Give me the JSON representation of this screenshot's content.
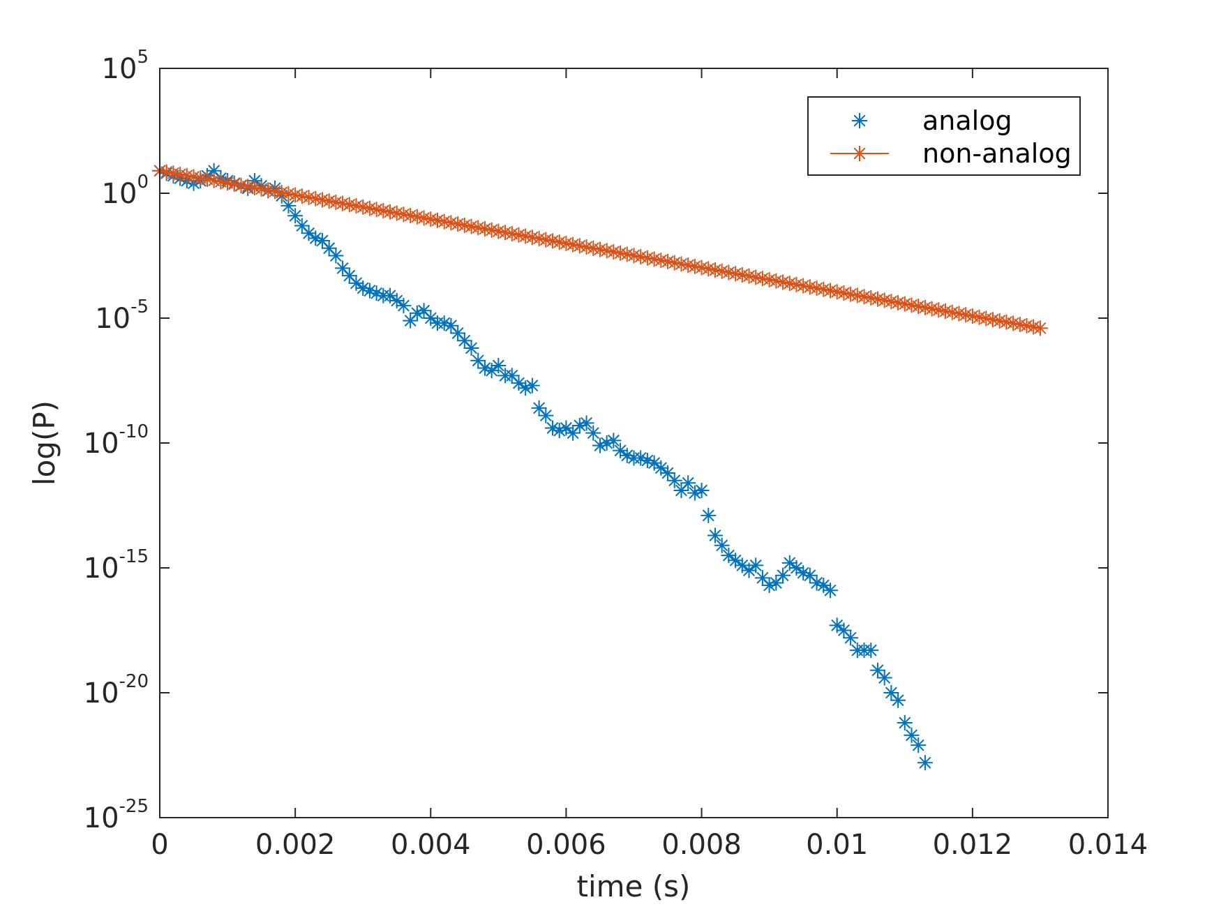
{
  "chart_data": {
    "type": "scatter",
    "xlabel": "time (s)",
    "ylabel": "log(P)",
    "xlim": [
      0,
      0.014
    ],
    "ylim_exponent": [
      -25,
      5
    ],
    "yscale": "log",
    "grid": false,
    "legend_position": "top-right",
    "x_ticks": [
      "0",
      "0.002",
      "0.004",
      "0.006",
      "0.008",
      "0.01",
      "0.012",
      "0.014"
    ],
    "y_ticks": [
      {
        "base": "10",
        "exp": "5"
      },
      {
        "base": "10",
        "exp": "0"
      },
      {
        "base": "10",
        "exp": "-5"
      },
      {
        "base": "10",
        "exp": "-10"
      },
      {
        "base": "10",
        "exp": "-15"
      },
      {
        "base": "10",
        "exp": "-20"
      },
      {
        "base": "10",
        "exp": "-25"
      }
    ],
    "series": [
      {
        "name": "analog",
        "color": "#0072BD",
        "marker": "asterisk",
        "x": [
          0,
          0.0001,
          0.0002,
          0.0003,
          0.0004,
          0.0005,
          0.0006,
          0.0007,
          0.0008,
          0.0009,
          0.001,
          0.0011,
          0.0012,
          0.0013,
          0.0014,
          0.0015,
          0.0016,
          0.0017,
          0.0018,
          0.0019,
          0.002,
          0.0021,
          0.0022,
          0.0023,
          0.0024,
          0.0025,
          0.0026,
          0.0027,
          0.0028,
          0.0029,
          0.003,
          0.0031,
          0.0032,
          0.0033,
          0.0034,
          0.0035,
          0.0036,
          0.0037,
          0.0038,
          0.0039,
          0.004,
          0.0041,
          0.0042,
          0.0043,
          0.0044,
          0.0045,
          0.0046,
          0.0047,
          0.0048,
          0.0049,
          0.005,
          0.0051,
          0.0052,
          0.0053,
          0.0054,
          0.0055,
          0.0056,
          0.0057,
          0.0058,
          0.0059,
          0.006,
          0.0061,
          0.0062,
          0.0063,
          0.0064,
          0.0065,
          0.0066,
          0.0067,
          0.0068,
          0.0069,
          0.007,
          0.0071,
          0.0072,
          0.0073,
          0.0074,
          0.0075,
          0.0076,
          0.0077,
          0.0078,
          0.0079,
          0.008,
          0.0081,
          0.0082,
          0.0083,
          0.0084,
          0.0085,
          0.0086,
          0.0087,
          0.0088,
          0.0089,
          0.009,
          0.0091,
          0.0092,
          0.0093,
          0.0094,
          0.0095,
          0.0096,
          0.0097,
          0.0098,
          0.0099,
          0.01,
          0.0101,
          0.0102,
          0.0103,
          0.0104,
          0.0105,
          0.0106,
          0.0107,
          0.0108,
          0.0109,
          0.011,
          0.0111,
          0.0112,
          0.0113
        ],
        "y_exponent": [
          0.9,
          0.8,
          0.7,
          0.6,
          0.5,
          0.4,
          0.5,
          0.7,
          0.9,
          0.6,
          0.5,
          0.4,
          0.3,
          0.2,
          0.5,
          0.3,
          0.1,
          0.2,
          -0.1,
          -0.5,
          -0.9,
          -1.3,
          -1.6,
          -1.8,
          -1.9,
          -2.2,
          -2.5,
          -3.0,
          -3.3,
          -3.6,
          -3.8,
          -3.9,
          -4.0,
          -4.1,
          -4.1,
          -4.3,
          -4.5,
          -5.1,
          -4.8,
          -4.7,
          -5.0,
          -5.2,
          -5.2,
          -5.3,
          -5.6,
          -5.9,
          -6.2,
          -6.7,
          -7.0,
          -7.1,
          -6.9,
          -7.3,
          -7.3,
          -7.6,
          -7.8,
          -7.7,
          -8.6,
          -8.9,
          -9.4,
          -9.5,
          -9.4,
          -9.6,
          -9.3,
          -9.2,
          -9.6,
          -10.1,
          -10.0,
          -9.9,
          -10.3,
          -10.5,
          -10.6,
          -10.6,
          -10.7,
          -10.8,
          -11.0,
          -11.2,
          -11.5,
          -11.9,
          -11.6,
          -12.0,
          -11.9,
          -12.9,
          -13.7,
          -14.1,
          -14.5,
          -14.7,
          -14.9,
          -15.1,
          -14.9,
          -15.4,
          -15.7,
          -15.6,
          -15.3,
          -14.8,
          -15.0,
          -15.2,
          -15.3,
          -15.6,
          -15.7,
          -15.9,
          -17.3,
          -17.5,
          -17.8,
          -18.3,
          -18.3,
          -18.3,
          -19.1,
          -19.4,
          -20.0,
          -20.3,
          -21.2,
          -21.7,
          -22.1,
          -22.8
        ]
      },
      {
        "name": "non-analog",
        "color": "#D95319",
        "marker": "asterisk",
        "x_start": 0,
        "x_step": 0.0001,
        "x_end": 0.013,
        "y_exponent_start": 0.9,
        "y_exponent_end": -5.4
      }
    ]
  }
}
